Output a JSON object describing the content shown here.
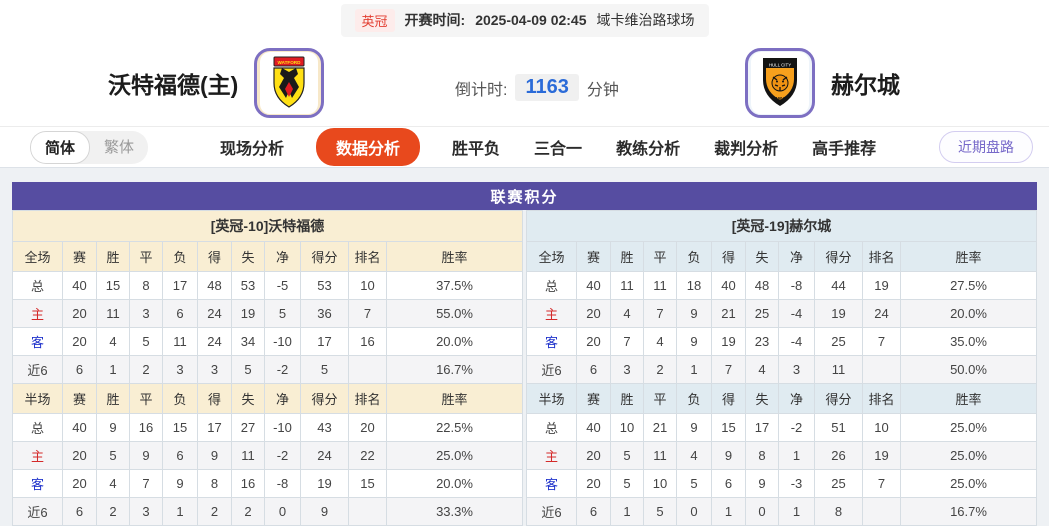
{
  "colors": {
    "accent_purple": "#564da1",
    "active_tab_red": "#e8491d",
    "home_header_cream": "#f9eed3",
    "away_header_blue": "#e0ebf1",
    "countdown_blue": "#2b6bd8",
    "home_row_red": "#d42a2a",
    "away_row_blue": "#2235cc"
  },
  "top_bar": {
    "league": "英冠",
    "kickoff_label": "开赛时间:",
    "kickoff_time": "2025-04-09 02:45",
    "venue": "域卡维治路球场"
  },
  "header": {
    "home_name": "沃特福德(主)",
    "away_name": "赫尔城",
    "home_badge_icon": "watford-crest",
    "away_badge_icon": "hull-city-crest",
    "countdown_label": "倒计时:",
    "countdown_value": "1163",
    "countdown_unit": "分钟"
  },
  "nav": {
    "lang_simplified": "简体",
    "lang_traditional": "繁体",
    "tabs": [
      {
        "label": "现场分析",
        "active": false
      },
      {
        "label": "数据分析",
        "active": true
      },
      {
        "label": "胜平负",
        "active": false
      },
      {
        "label": "三合一",
        "active": false
      },
      {
        "label": "教练分析",
        "active": false
      },
      {
        "label": "裁判分析",
        "active": false
      },
      {
        "label": "高手推荐",
        "active": false
      }
    ],
    "right_button": "近期盘路"
  },
  "table": {
    "title": "联赛积分",
    "home": {
      "team_header": "[英冠-10]沃特福德",
      "full": {
        "header": [
          "全场",
          "赛",
          "胜",
          "平",
          "负",
          "得",
          "失",
          "净",
          "得分",
          "排名",
          "胜率"
        ],
        "rows": [
          [
            "总",
            "40",
            "15",
            "8",
            "17",
            "48",
            "53",
            "-5",
            "53",
            "10",
            "37.5%"
          ],
          [
            "主",
            "20",
            "11",
            "3",
            "6",
            "24",
            "19",
            "5",
            "36",
            "7",
            "55.0%"
          ],
          [
            "客",
            "20",
            "4",
            "5",
            "11",
            "24",
            "34",
            "-10",
            "17",
            "16",
            "20.0%"
          ],
          [
            "近6",
            "6",
            "1",
            "2",
            "3",
            "3",
            "5",
            "-2",
            "5",
            "",
            "16.7%"
          ]
        ]
      },
      "half": {
        "header": [
          "半场",
          "赛",
          "胜",
          "平",
          "负",
          "得",
          "失",
          "净",
          "得分",
          "排名",
          "胜率"
        ],
        "rows": [
          [
            "总",
            "40",
            "9",
            "16",
            "15",
            "17",
            "27",
            "-10",
            "43",
            "20",
            "22.5%"
          ],
          [
            "主",
            "20",
            "5",
            "9",
            "6",
            "9",
            "11",
            "-2",
            "24",
            "22",
            "25.0%"
          ],
          [
            "客",
            "20",
            "4",
            "7",
            "9",
            "8",
            "16",
            "-8",
            "19",
            "15",
            "20.0%"
          ],
          [
            "近6",
            "6",
            "2",
            "3",
            "1",
            "2",
            "2",
            "0",
            "9",
            "",
            "33.3%"
          ]
        ]
      }
    },
    "away": {
      "team_header": "[英冠-19]赫尔城",
      "full": {
        "header": [
          "全场",
          "赛",
          "胜",
          "平",
          "负",
          "得",
          "失",
          "净",
          "得分",
          "排名",
          "胜率"
        ],
        "rows": [
          [
            "总",
            "40",
            "11",
            "11",
            "18",
            "40",
            "48",
            "-8",
            "44",
            "19",
            "27.5%"
          ],
          [
            "主",
            "20",
            "4",
            "7",
            "9",
            "21",
            "25",
            "-4",
            "19",
            "24",
            "20.0%"
          ],
          [
            "客",
            "20",
            "7",
            "4",
            "9",
            "19",
            "23",
            "-4",
            "25",
            "7",
            "35.0%"
          ],
          [
            "近6",
            "6",
            "3",
            "2",
            "1",
            "7",
            "4",
            "3",
            "11",
            "",
            "50.0%"
          ]
        ]
      },
      "half": {
        "header": [
          "半场",
          "赛",
          "胜",
          "平",
          "负",
          "得",
          "失",
          "净",
          "得分",
          "排名",
          "胜率"
        ],
        "rows": [
          [
            "总",
            "40",
            "10",
            "21",
            "9",
            "15",
            "17",
            "-2",
            "51",
            "10",
            "25.0%"
          ],
          [
            "主",
            "20",
            "5",
            "11",
            "4",
            "9",
            "8",
            "1",
            "26",
            "19",
            "25.0%"
          ],
          [
            "客",
            "20",
            "5",
            "10",
            "5",
            "6",
            "9",
            "-3",
            "25",
            "7",
            "25.0%"
          ],
          [
            "近6",
            "6",
            "1",
            "5",
            "0",
            "1",
            "0",
            "1",
            "8",
            "",
            "16.7%"
          ]
        ]
      }
    }
  }
}
